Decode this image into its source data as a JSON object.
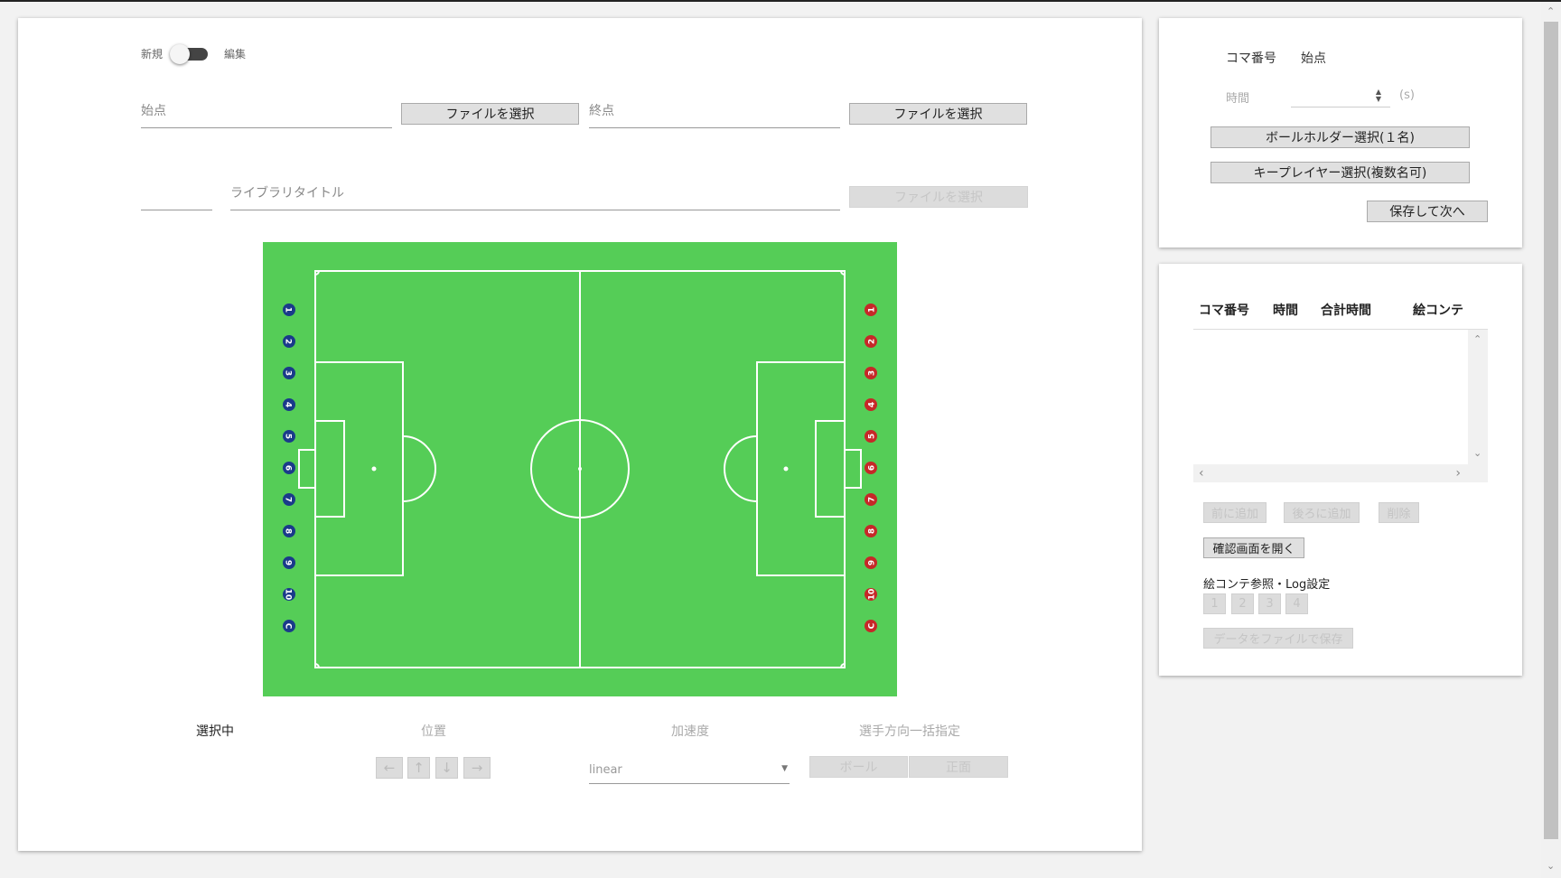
{
  "toggle": {
    "left_label": "新規",
    "right_label": "編集"
  },
  "start_field": {
    "label": "始点",
    "button": "ファイルを選択"
  },
  "end_field": {
    "label": "終点",
    "button": "ファイルを選択"
  },
  "library": {
    "placeholder": "ライブラリタイトル",
    "button": "ファイルを選択"
  },
  "team_left": {
    "color": "#1a3a8a",
    "players": [
      "1",
      "2",
      "3",
      "4",
      "5",
      "6",
      "7",
      "8",
      "9",
      "10",
      "C"
    ]
  },
  "team_right": {
    "color": "#c62828",
    "players": [
      "1",
      "2",
      "3",
      "4",
      "5",
      "6",
      "7",
      "8",
      "9",
      "10",
      "C"
    ]
  },
  "controls": {
    "selected_label": "選択中",
    "position_label": "位置",
    "accel_label": "加速度",
    "direction_label": "選手方向一括指定",
    "arrows": {
      "left": "←",
      "up": "↑",
      "down": "↓",
      "right": "→"
    },
    "accel_value": "linear",
    "ball_button": "ボール",
    "front_button": "正面"
  },
  "info": {
    "frame_label": "コマ番号",
    "frame_value": "始点",
    "time_label": "時間",
    "time_unit": "(s)",
    "ballholder_button": "ボールホルダー選択(１名)",
    "keyplayer_button": "キープレイヤー選択(複数名可)",
    "save_next_button": "保存して次へ"
  },
  "list": {
    "columns": [
      "コマ番号",
      "時間",
      "合計時間",
      "絵コンテ"
    ],
    "add_before": "前に追加",
    "add_after": "後ろに追加",
    "delete": "削除",
    "open_confirm": "確認画面を開く",
    "storyboard_label": "絵コンテ参照・Log設定",
    "pages": [
      "1",
      "2",
      "3",
      "4"
    ],
    "save_file": "データをファイルで保存"
  }
}
